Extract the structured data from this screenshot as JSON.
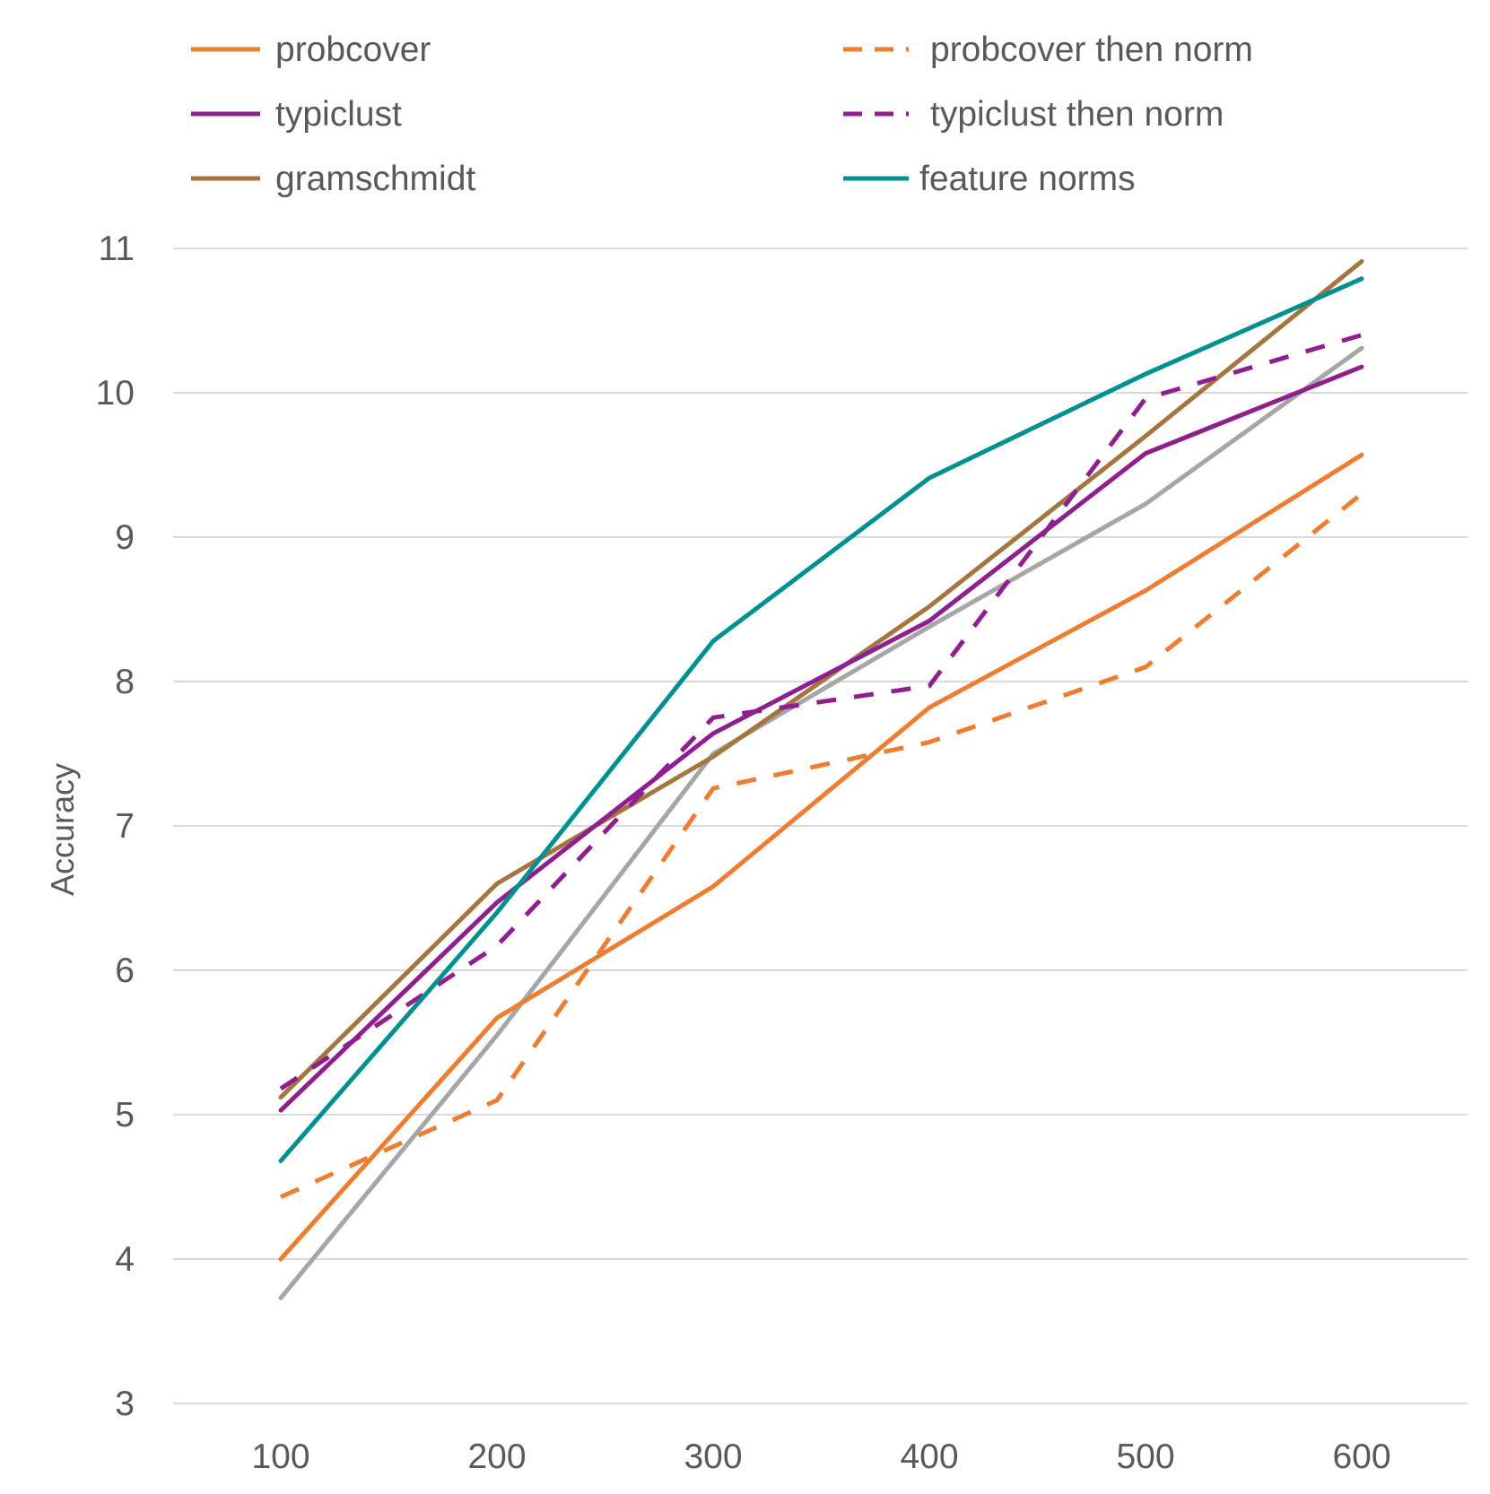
{
  "chart_data": {
    "type": "line",
    "title": "",
    "xlabel": "",
    "ylabel": "Accuracy",
    "x": [
      100,
      200,
      300,
      400,
      500,
      600
    ],
    "xticks": [
      "100",
      "200",
      "300",
      "400",
      "500",
      "600"
    ],
    "yticks": [
      "3",
      "4",
      "5",
      "6",
      "7",
      "8",
      "9",
      "10",
      "11"
    ],
    "ylim": [
      3,
      11
    ],
    "grid": "horizontal",
    "legend_position": "top",
    "series": [
      {
        "name": "probcover",
        "color": "#ED7D31",
        "dash": "solid",
        "values": [
          4.0,
          5.67,
          6.58,
          7.82,
          8.63,
          9.57
        ]
      },
      {
        "name": "probcover then norm",
        "color": "#ED7D31",
        "dash": "dashed",
        "values": [
          4.43,
          5.1,
          7.26,
          7.58,
          8.1,
          9.3
        ]
      },
      {
        "name": "typiclust",
        "color": "#8E1F8E",
        "dash": "solid",
        "values": [
          5.03,
          6.47,
          7.64,
          8.42,
          9.58,
          10.18
        ]
      },
      {
        "name": "typiclust then norm",
        "color": "#8E1F8E",
        "dash": "dashed",
        "values": [
          5.18,
          6.17,
          7.75,
          7.97,
          9.96,
          10.4
        ]
      },
      {
        "name": "gramschmidt",
        "color": "#A5753F",
        "dash": "solid",
        "values": [
          5.12,
          6.6,
          7.48,
          8.52,
          9.7,
          10.91
        ]
      },
      {
        "name": "feature norms",
        "color": "#009090",
        "dash": "solid",
        "values": [
          4.68,
          6.4,
          8.28,
          9.41,
          10.13,
          10.79
        ]
      },
      {
        "name": "",
        "color": "#A6A6A6",
        "dash": "solid",
        "in_legend": false,
        "values": [
          3.73,
          5.55,
          7.5,
          8.38,
          9.23,
          10.31
        ]
      }
    ]
  }
}
